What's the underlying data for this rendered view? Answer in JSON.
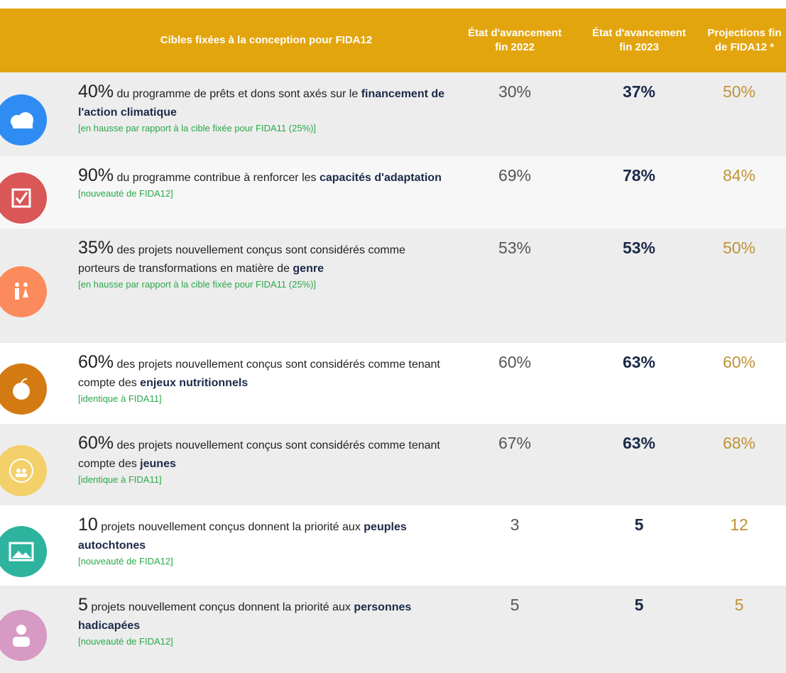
{
  "table": {
    "header": [
      "Cibles fixées à la conception pour FIDA12",
      "État d'avancement fin 2022",
      "État d'avancement fin 2023",
      "Projections fin de FIDA12 *"
    ],
    "rows": [
      {
        "lead": "40%",
        "text": "du programme de prêts et dons sont axés sur le",
        "bold": "financement de l'action climatique",
        "note": "[en hausse par rapport à la cible fixée pour FIDA11 (25%)]",
        "values": [
          "30%",
          "37%",
          "50%"
        ]
      },
      {
        "lead": "90%",
        "text": "du programme contribue à renforcer les",
        "bold": "capacités d'adaptation",
        "note": "[nouveauté de FIDA12]",
        "values": [
          "69%",
          "78%",
          "84%"
        ]
      },
      {
        "lead": "35%",
        "text": "des projets nouvellement conçus sont considérés comme porteurs de transformations en matière de",
        "bold": "genre",
        "note": "[en hausse par rapport à la cible fixée pour FIDA11 (25%)]",
        "values": [
          "53%",
          "53%",
          "50%"
        ]
      },
      {
        "lead": "60%",
        "text": "des projets nouvellement conçus sont considérés comme tenant compte des",
        "bold": "enjeux nutritionnels",
        "note": "[identique à FIDA11]",
        "values": [
          "60%",
          "63%",
          "60%"
        ]
      },
      {
        "lead": "60%",
        "text": "des projets nouvellement conçus sont considérés comme tenant compte des",
        "bold": "jeunes",
        "note": "[identique à FIDA11]",
        "values": [
          "67%",
          "63%",
          "68%"
        ]
      },
      {
        "lead": "10",
        "text": "projets nouvellement conçus donnent la priorité aux",
        "bold": "peuples autochtones",
        "note": "[nouveauté de FIDA12]",
        "values": [
          "3",
          "5",
          "12"
        ]
      },
      {
        "lead": "5",
        "text": "projets nouvellement conçus donnent la priorité aux",
        "bold": "personnes hadicapées",
        "note": "[nouveauté de FIDA12]",
        "values": [
          "5",
          "5",
          "5"
        ]
      }
    ]
  }
}
